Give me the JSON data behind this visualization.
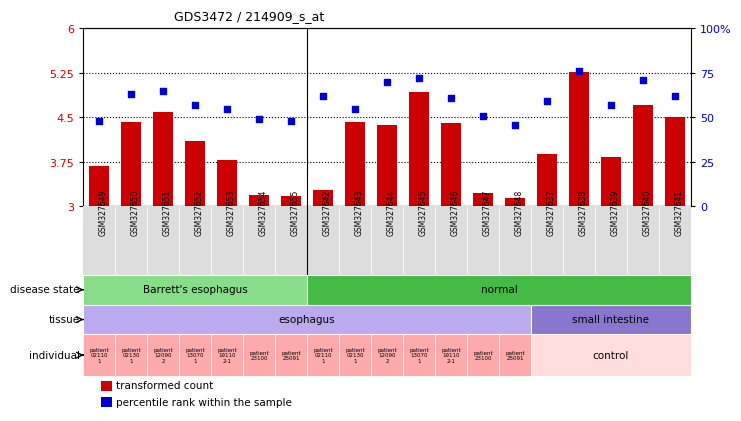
{
  "title": "GDS3472 / 214909_s_at",
  "samples": [
    "GSM327649",
    "GSM327650",
    "GSM327651",
    "GSM327652",
    "GSM327653",
    "GSM327654",
    "GSM327655",
    "GSM327642",
    "GSM327643",
    "GSM327644",
    "GSM327645",
    "GSM327646",
    "GSM327647",
    "GSM327648",
    "GSM327637",
    "GSM327638",
    "GSM327639",
    "GSM327640",
    "GSM327641"
  ],
  "transformed_count": [
    3.68,
    4.43,
    4.6,
    4.1,
    3.78,
    3.2,
    3.18,
    3.28,
    4.42,
    4.38,
    4.93,
    4.4,
    3.22,
    3.15,
    3.88,
    5.26,
    3.84,
    4.71,
    4.5
  ],
  "percentile_rank": [
    48,
    63,
    65,
    57,
    55,
    49,
    48,
    62,
    55,
    70,
    72,
    61,
    51,
    46,
    59,
    76,
    57,
    71,
    62
  ],
  "ylim_left": [
    3,
    6
  ],
  "ylim_right": [
    0,
    100
  ],
  "yticks_left": [
    3,
    3.75,
    4.5,
    5.25,
    6
  ],
  "yticks_right": [
    0,
    25,
    50,
    75,
    100
  ],
  "bar_color": "#cc0000",
  "dot_color": "#0000cc",
  "tick_color_left": "#cc0000",
  "tick_color_right": "#0000cc",
  "disease_barrett_color": "#88dd88",
  "disease_normal_color": "#44bb44",
  "tissue_esophagus_color": "#bbaaee",
  "tissue_small_color": "#8877cc",
  "individual_eso_color": "#ffaaaa",
  "individual_ctrl_color": "#ffdddd",
  "bg_xtick": "#dddddd"
}
